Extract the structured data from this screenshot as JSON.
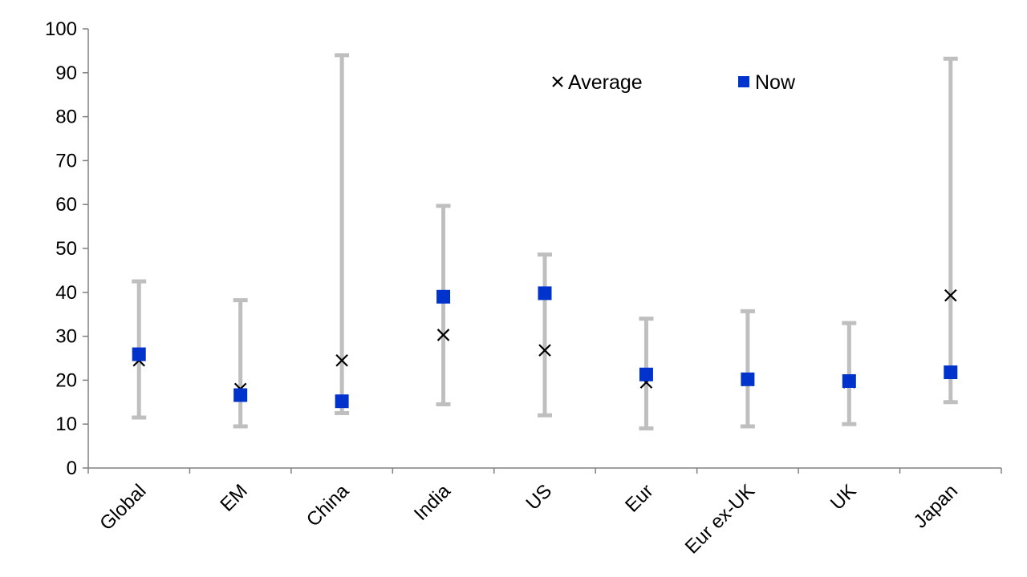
{
  "chart_data": {
    "type": "scatter",
    "title": "",
    "xlabel": "",
    "ylabel": "",
    "ylim": [
      0,
      100
    ],
    "yticks": [
      0,
      10,
      20,
      30,
      40,
      50,
      60,
      70,
      80,
      90,
      100
    ],
    "grid": false,
    "legend_position": "top-right",
    "categories": [
      "Global",
      "EM",
      "China",
      "India",
      "US",
      "Eur",
      "Eur ex-UK",
      "UK",
      "Japan"
    ],
    "range": {
      "min": [
        11.5,
        9.5,
        12.5,
        14.5,
        12.0,
        9.0,
        9.5,
        10.0,
        15.0
      ],
      "max": [
        42.5,
        38.2,
        94.0,
        59.7,
        48.6,
        34.0,
        35.7,
        33.0,
        93.2
      ],
      "color": "#bfbfbf"
    },
    "series": [
      {
        "name": "Average",
        "marker": "x",
        "color": "#000000",
        "values": [
          24.5,
          18.0,
          24.5,
          30.3,
          26.8,
          19.5,
          20.0,
          19.5,
          39.3
        ]
      },
      {
        "name": "Now",
        "marker": "square",
        "color": "#0033cc",
        "values": [
          25.9,
          16.6,
          15.2,
          39.0,
          39.8,
          21.3,
          20.2,
          19.8,
          21.8
        ]
      }
    ]
  }
}
